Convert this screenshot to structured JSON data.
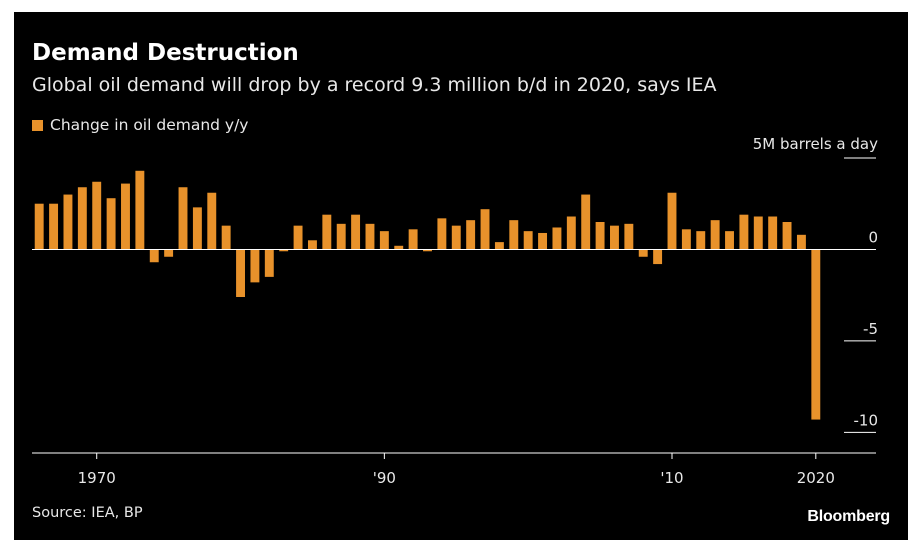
{
  "title": "Demand Destruction",
  "subtitle": "Global oil demand will drop by a record 9.3 million b/d in 2020, says IEA",
  "source": "Source: IEA, BP",
  "brand": "Bloomberg",
  "colors": {
    "background": "#000000",
    "bar": "#e8922b",
    "text": "#e8e8e8",
    "axis": "#ffffff"
  },
  "chart_data": {
    "type": "bar",
    "legend": [
      "Change in oil demand y/y"
    ],
    "y_unit_label": "5M barrels a day",
    "y_ticks": [
      {
        "value": 5,
        "label": ""
      },
      {
        "value": 0,
        "label": "0"
      },
      {
        "value": -5,
        "label": "-5"
      },
      {
        "value": -10,
        "label": "-10"
      }
    ],
    "ylim": [
      -10.8,
      5.6
    ],
    "x_ticks": [
      {
        "year": 1970,
        "label": "1970"
      },
      {
        "year": 1990,
        "label": "'90"
      },
      {
        "year": 2010,
        "label": "'10"
      },
      {
        "year": 2020,
        "label": "2020"
      }
    ],
    "xlim": [
      1965.5,
      2020.5
    ],
    "grid": false,
    "series": [
      {
        "name": "Change in oil demand y/y",
        "x": [
          1966,
          1967,
          1968,
          1969,
          1970,
          1971,
          1972,
          1973,
          1974,
          1975,
          1976,
          1977,
          1978,
          1979,
          1980,
          1981,
          1982,
          1983,
          1984,
          1985,
          1986,
          1987,
          1988,
          1989,
          1990,
          1991,
          1992,
          1993,
          1994,
          1995,
          1996,
          1997,
          1998,
          1999,
          2000,
          2001,
          2002,
          2003,
          2004,
          2005,
          2006,
          2007,
          2008,
          2009,
          2010,
          2011,
          2012,
          2013,
          2014,
          2015,
          2016,
          2017,
          2018,
          2019,
          2020
        ],
        "values": [
          2.5,
          2.5,
          3.0,
          3.4,
          3.7,
          2.8,
          3.6,
          4.3,
          -0.7,
          -0.4,
          3.4,
          2.3,
          3.1,
          1.3,
          -2.6,
          -1.8,
          -1.5,
          -0.1,
          1.3,
          0.5,
          1.9,
          1.4,
          1.9,
          1.4,
          1.0,
          0.2,
          1.1,
          -0.1,
          1.7,
          1.3,
          1.6,
          2.2,
          0.4,
          1.6,
          1.0,
          0.9,
          1.2,
          1.8,
          3.0,
          1.5,
          1.3,
          1.4,
          -0.4,
          -0.8,
          3.1,
          1.1,
          1.0,
          1.6,
          1.0,
          1.9,
          1.8,
          1.8,
          1.5,
          0.8,
          -9.3
        ]
      }
    ]
  }
}
